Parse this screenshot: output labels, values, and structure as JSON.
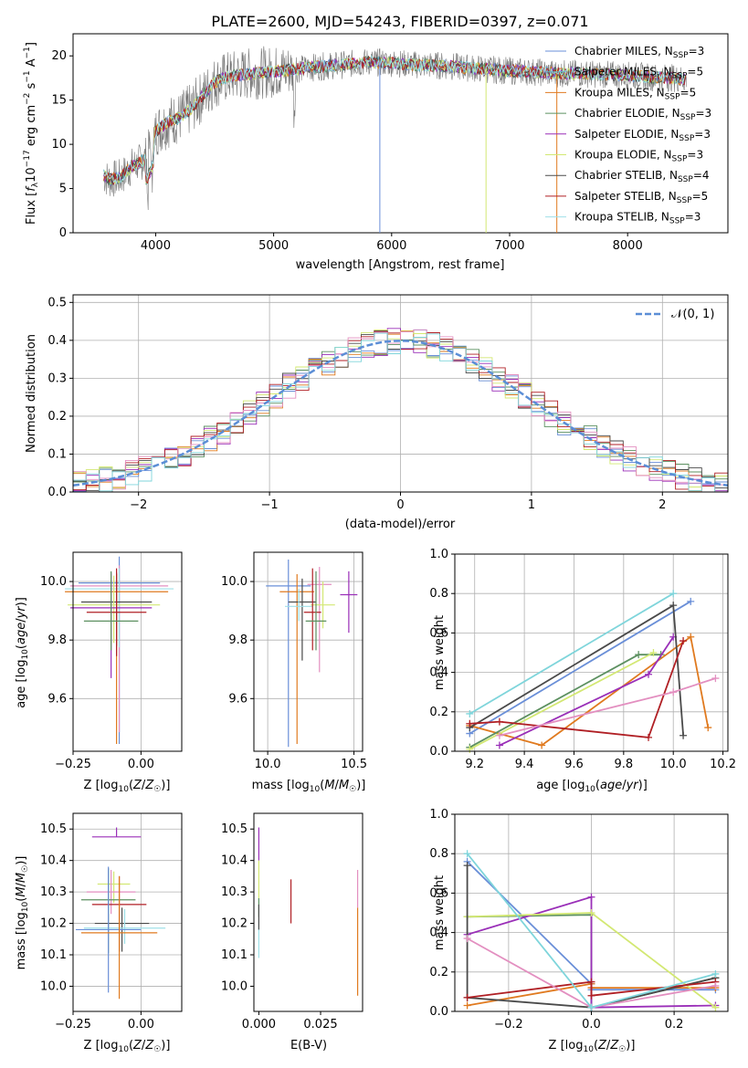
{
  "colors": [
    "#6a8fd8",
    "#e07a1f",
    "#5c9060",
    "#9a2fb8",
    "#d3e873",
    "#4a4a4a",
    "#b01f24",
    "#e38fc0",
    "#7fd5db"
  ],
  "chart_data": [
    {
      "type": "line",
      "title": "PLATE=2600, MJD=54243, FIBERID=0397, z=0.071",
      "xlabel": "wavelength [Angstrom, rest frame]",
      "ylabel": "Flux [f_λ 10^-17 erg cm^-2 s^-1 A^-1]",
      "xlim": [
        3300,
        8850
      ],
      "ylim": [
        0,
        22.5
      ],
      "xticks": [
        4000,
        5000,
        6000,
        7000,
        8000
      ],
      "yticks": [
        0,
        5,
        10,
        15,
        20
      ],
      "grid": false,
      "legend_position": "top-right",
      "legend": [
        {
          "name": "Chabrier MILES",
          "nssp": "3",
          "color": "#6a8fd8"
        },
        {
          "name": "Salpeter MILES",
          "nssp": "5",
          "color": "#5fb8c8"
        },
        {
          "name": "Kroupa MILES",
          "nssp": "5",
          "color": "#e07a1f"
        },
        {
          "name": "Chabrier ELODIE",
          "nssp": "3",
          "color": "#5c9060"
        },
        {
          "name": "Salpeter ELODIE",
          "nssp": "3",
          "color": "#9a2fb8"
        },
        {
          "name": "Kroupa ELODIE",
          "nssp": "3",
          "color": "#d3e873"
        },
        {
          "name": "Chabrier STELIB",
          "nssp": "4",
          "color": "#4a4a4a"
        },
        {
          "name": "Salpeter STELIB",
          "nssp": "5",
          "color": "#b01f24"
        },
        {
          "name": "Kroupa STELIB",
          "nssp": "3",
          "color": "#9fe0e8"
        }
      ],
      "spectrum_shape": {
        "x": [
          3560,
          3600,
          3700,
          3800,
          3900,
          4000,
          4100,
          4200,
          4300,
          4400,
          4500,
          4600,
          4800,
          5000,
          5200,
          5400,
          5600,
          5800,
          6000,
          6200,
          6400,
          6600,
          6800,
          7000,
          7200,
          7400,
          7600,
          7800,
          8000,
          8200,
          8400,
          8500
        ],
        "y": [
          6.5,
          6.0,
          6.2,
          7.5,
          8.2,
          11.5,
          12.5,
          13.0,
          14.0,
          15.5,
          17.0,
          17.6,
          18.0,
          18.2,
          18.5,
          18.8,
          19.0,
          19.3,
          19.2,
          19.0,
          18.9,
          18.7,
          18.5,
          18.3,
          18.2,
          18.0,
          18.0,
          17.9,
          17.8,
          17.6,
          17.5,
          17.3
        ]
      }
    },
    {
      "type": "line",
      "xlabel": "(data-model)/error",
      "ylabel": "Normed distribution",
      "xlim": [
        -2.5,
        2.5
      ],
      "ylim": [
        0,
        0.52
      ],
      "xticks": [
        -2,
        -1,
        0,
        1,
        2
      ],
      "yticks": [
        0.0,
        0.1,
        0.2,
        0.3,
        0.4,
        0.5
      ],
      "grid": true,
      "legend_position": "top-right",
      "legend": [
        {
          "name": "𝒩(0, 1)",
          "color": "#5b8ed6",
          "style": "dashed"
        }
      ]
    },
    {
      "type": "scatter",
      "xlabel": "Z [log₁₀(Z/Z☉)]",
      "ylabel": "age  [log₁₀(age/yr)]",
      "xlim": [
        -0.25,
        0.15
      ],
      "ylim": [
        9.42,
        10.1
      ],
      "xticks": [
        -0.25,
        0.0
      ],
      "yticks": [
        9.6,
        9.8,
        10.0
      ],
      "grid": true,
      "errorbars": [
        {
          "x": -0.08,
          "y": 9.995,
          "xerr": 0.15,
          "yerr_lo": 0.55,
          "yerr_hi": 0.09,
          "color": "#6a8fd8"
        },
        {
          "x": -0.08,
          "y": 9.985,
          "xerr": 0.18,
          "yerr_lo": 0.5,
          "yerr_hi": 0.07,
          "color": "#e38fc0"
        },
        {
          "x": -0.08,
          "y": 9.975,
          "xerr": 0.2,
          "yerr_lo": 0.2,
          "yerr_hi": 0.07,
          "color": "#9fe0e8"
        },
        {
          "x": -0.09,
          "y": 9.965,
          "xerr": 0.19,
          "yerr_lo": 0.52,
          "yerr_hi": 0.06,
          "color": "#e07a1f"
        },
        {
          "x": -0.09,
          "y": 9.93,
          "xerr": 0.13,
          "yerr_lo": 0.15,
          "yerr_hi": 0.1,
          "color": "#4a4a4a"
        },
        {
          "x": -0.1,
          "y": 9.92,
          "xerr": 0.17,
          "yerr_lo": 0.13,
          "yerr_hi": 0.1,
          "color": "#d3e873"
        },
        {
          "x": -0.11,
          "y": 9.91,
          "xerr": 0.15,
          "yerr_lo": 0.24,
          "yerr_hi": 0.12,
          "color": "#9a2fb8"
        },
        {
          "x": -0.09,
          "y": 9.895,
          "xerr": 0.11,
          "yerr_lo": 0.15,
          "yerr_hi": 0.15,
          "color": "#b01f24"
        },
        {
          "x": -0.11,
          "y": 9.865,
          "xerr": 0.1,
          "yerr_lo": 0.1,
          "yerr_hi": 0.17,
          "color": "#5c9060"
        }
      ]
    },
    {
      "type": "scatter",
      "xlabel": "mass [log₁₀(M/M☉)]",
      "xlim": [
        9.92,
        10.55
      ],
      "ylim": [
        9.42,
        10.1
      ],
      "xticks": [
        10.0,
        10.5
      ],
      "yticks": [
        9.6,
        9.8,
        10.0
      ],
      "grid": true,
      "errorbars": [
        {
          "x": 10.12,
          "y": 9.985,
          "xerr": 0.13,
          "yerr_lo": 0.55,
          "yerr_hi": 0.09,
          "color": "#6a8fd8"
        },
        {
          "x": 10.17,
          "y": 9.965,
          "xerr": 0.1,
          "yerr_lo": 0.52,
          "yerr_hi": 0.06,
          "color": "#e07a1f"
        },
        {
          "x": 10.3,
          "y": 9.99,
          "xerr": 0.07,
          "yerr_lo": 0.3,
          "yerr_hi": 0.06,
          "color": "#e38fc0"
        },
        {
          "x": 10.2,
          "y": 9.93,
          "xerr": 0.08,
          "yerr_lo": 0.2,
          "yerr_hi": 0.08,
          "color": "#4a4a4a"
        },
        {
          "x": 10.32,
          "y": 9.92,
          "xerr": 0.07,
          "yerr_lo": 0.08,
          "yerr_hi": 0.08,
          "color": "#d3e873"
        },
        {
          "x": 10.18,
          "y": 9.915,
          "xerr": 0.08,
          "yerr_lo": 0.05,
          "yerr_hi": 0.06,
          "color": "#9fe0e8"
        },
        {
          "x": 10.26,
          "y": 9.895,
          "xerr": 0.05,
          "yerr_lo": 0.13,
          "yerr_hi": 0.15,
          "color": "#b01f24"
        },
        {
          "x": 10.47,
          "y": 9.955,
          "xerr": 0.05,
          "yerr_lo": 0.13,
          "yerr_hi": 0.08,
          "color": "#9a2fb8"
        },
        {
          "x": 10.28,
          "y": 9.865,
          "xerr": 0.06,
          "yerr_lo": 0.1,
          "yerr_hi": 0.17,
          "color": "#5c9060"
        }
      ]
    },
    {
      "type": "line",
      "xlabel": "age  [log₁₀(age/yr)]",
      "ylabel": "mass weight",
      "xlim": [
        9.12,
        10.22
      ],
      "ylim": [
        0,
        1.0
      ],
      "xticks": [
        9.2,
        9.4,
        9.6,
        9.8,
        10.0,
        10.2
      ],
      "yticks": [
        0.0,
        0.2,
        0.4,
        0.6,
        0.8,
        1.0
      ],
      "grid": true,
      "series": [
        {
          "color": "#6a8fd8",
          "x": [
            9.18,
            10.07
          ],
          "y": [
            0.09,
            0.76
          ]
        },
        {
          "color": "#e07a1f",
          "x": [
            9.18,
            9.47,
            10.07,
            10.14
          ],
          "y": [
            0.13,
            0.03,
            0.58,
            0.12
          ]
        },
        {
          "color": "#5c9060",
          "x": [
            9.18,
            9.86,
            9.95
          ],
          "y": [
            0.02,
            0.49,
            0.49
          ]
        },
        {
          "color": "#9a2fb8",
          "x": [
            9.3,
            9.9,
            10.0
          ],
          "y": [
            0.03,
            0.39,
            0.58
          ]
        },
        {
          "color": "#d3e873",
          "x": [
            9.18,
            9.92
          ],
          "y": [
            0.01,
            0.5
          ]
        },
        {
          "color": "#4a4a4a",
          "x": [
            9.18,
            10.0,
            10.04
          ],
          "y": [
            0.12,
            0.74,
            0.08
          ]
        },
        {
          "color": "#b01f24",
          "x": [
            9.18,
            9.3,
            9.9,
            10.04
          ],
          "y": [
            0.14,
            0.15,
            0.07,
            0.56
          ]
        },
        {
          "color": "#e38fc0",
          "x": [
            9.3,
            10.0,
            10.17
          ],
          "y": [
            0.08,
            0.3,
            0.37
          ]
        },
        {
          "color": "#7fd5db",
          "x": [
            9.18,
            10.0
          ],
          "y": [
            0.19,
            0.8
          ]
        }
      ]
    },
    {
      "type": "scatter",
      "xlabel": "Z [log₁₀(Z/Z☉)]",
      "ylabel": "mass [log₁₀(M/M☉)]",
      "xlim": [
        -0.25,
        0.15
      ],
      "ylim": [
        9.92,
        10.55
      ],
      "xticks": [
        -0.25,
        0.0
      ],
      "yticks": [
        10.0,
        10.1,
        10.2,
        10.3,
        10.4,
        10.5
      ],
      "grid": true,
      "errorbars": [
        {
          "x": -0.09,
          "y": 10.475,
          "xerr": 0.09,
          "yerr_lo": 0.0,
          "yerr_hi": 0.03,
          "color": "#9a2fb8"
        },
        {
          "x": -0.1,
          "y": 10.325,
          "xerr": 0.06,
          "yerr_lo": 0.06,
          "yerr_hi": 0.04,
          "color": "#d3e873"
        },
        {
          "x": -0.11,
          "y": 10.3,
          "xerr": 0.09,
          "yerr_lo": 0.07,
          "yerr_hi": 0.07,
          "color": "#e38fc0"
        },
        {
          "x": -0.12,
          "y": 10.275,
          "xerr": 0.1,
          "yerr_lo": 0.17,
          "yerr_hi": 0.1,
          "color": "#5c9060"
        },
        {
          "x": -0.08,
          "y": 10.26,
          "xerr": 0.1,
          "yerr_lo": 0.15,
          "yerr_hi": 0.09,
          "color": "#b01f24"
        },
        {
          "x": -0.07,
          "y": 10.2,
          "xerr": 0.1,
          "yerr_lo": 0.09,
          "yerr_hi": 0.05,
          "color": "#4a4a4a"
        },
        {
          "x": -0.06,
          "y": 10.185,
          "xerr": 0.15,
          "yerr_lo": 0.05,
          "yerr_hi": 0.06,
          "color": "#9fe0e8"
        },
        {
          "x": -0.12,
          "y": 10.18,
          "xerr": 0.12,
          "yerr_lo": 0.2,
          "yerr_hi": 0.2,
          "color": "#6a8fd8"
        },
        {
          "x": -0.08,
          "y": 10.17,
          "xerr": 0.14,
          "yerr_lo": 0.21,
          "yerr_hi": 0.18,
          "color": "#e07a1f"
        }
      ]
    },
    {
      "type": "scatter",
      "xlabel": "E(B-V)",
      "xlim": [
        -0.002,
        0.042
      ],
      "ylim": [
        9.92,
        10.55
      ],
      "xticks": [
        0.0,
        0.025
      ],
      "yticks": [
        10.0,
        10.1,
        10.2,
        10.3,
        10.4,
        10.5
      ],
      "grid": false,
      "errorbars": [
        {
          "x": 0.0,
          "y": 10.47,
          "yerr_lo": 0.07,
          "yerr_hi": 0.035,
          "color": "#9a2fb8"
        },
        {
          "x": 0.0,
          "y": 10.34,
          "yerr_lo": 0.06,
          "yerr_hi": 0.06,
          "color": "#d3e873"
        },
        {
          "x": 0.0,
          "y": 10.25,
          "yerr_lo": 0.03,
          "yerr_hi": 0.03,
          "color": "#5c9060"
        },
        {
          "x": 0.0,
          "y": 10.15,
          "yerr_lo": 0.06,
          "yerr_hi": 0.06,
          "color": "#9fe0e8"
        },
        {
          "x": 0.0,
          "y": 10.22,
          "yerr_lo": 0.04,
          "yerr_hi": 0.04,
          "color": "#4a4a4a"
        },
        {
          "x": 0.013,
          "y": 10.27,
          "yerr_lo": 0.07,
          "yerr_hi": 0.07,
          "color": "#b01f24"
        },
        {
          "x": 0.04,
          "y": 10.15,
          "yerr_lo": 0.18,
          "yerr_hi": 0.1,
          "color": "#e07a1f"
        },
        {
          "x": 0.04,
          "y": 10.3,
          "yerr_lo": 0.05,
          "yerr_hi": 0.07,
          "color": "#e38fc0"
        }
      ]
    },
    {
      "type": "line",
      "xlabel": "Z [log₁₀(Z/Z☉)]",
      "ylabel": "mass weight",
      "xlim": [
        -0.33,
        0.33
      ],
      "ylim": [
        0,
        1.0
      ],
      "xticks": [
        -0.2,
        0.0,
        0.2
      ],
      "yticks": [
        0.0,
        0.2,
        0.4,
        0.6,
        0.8,
        1.0
      ],
      "grid": true,
      "series": [
        {
          "color": "#6a8fd8",
          "x": [
            -0.3,
            0.0,
            0.0,
            0.3
          ],
          "y": [
            0.76,
            0.14,
            0.11,
            0.11
          ]
        },
        {
          "color": "#e07a1f",
          "x": [
            -0.3,
            0.0,
            0.0,
            0.3
          ],
          "y": [
            0.03,
            0.14,
            0.12,
            0.12
          ]
        },
        {
          "color": "#5c9060",
          "x": [
            -0.3,
            0.0,
            0.0,
            0.3
          ],
          "y": [
            0.48,
            0.49,
            0.02,
            0.17
          ]
        },
        {
          "color": "#9a2fb8",
          "x": [
            -0.3,
            0.0,
            0.0,
            0.3
          ],
          "y": [
            0.39,
            0.58,
            0.02,
            0.03
          ]
        },
        {
          "color": "#d3e873",
          "x": [
            -0.3,
            0.0,
            0.3
          ],
          "y": [
            0.48,
            0.5,
            0.02
          ]
        },
        {
          "color": "#4a4a4a",
          "x": [
            -0.3,
            -0.3,
            0.0,
            0.3
          ],
          "y": [
            0.74,
            0.07,
            0.02,
            0.17
          ]
        },
        {
          "color": "#b01f24",
          "x": [
            -0.3,
            0.0,
            0.0,
            0.3
          ],
          "y": [
            0.07,
            0.15,
            0.08,
            0.15
          ]
        },
        {
          "color": "#e38fc0",
          "x": [
            -0.3,
            0.0,
            0.3
          ],
          "y": [
            0.37,
            0.02,
            0.13
          ]
        },
        {
          "color": "#7fd5db",
          "x": [
            -0.3,
            0.0,
            0.3
          ],
          "y": [
            0.8,
            0.02,
            0.19
          ]
        }
      ]
    }
  ]
}
